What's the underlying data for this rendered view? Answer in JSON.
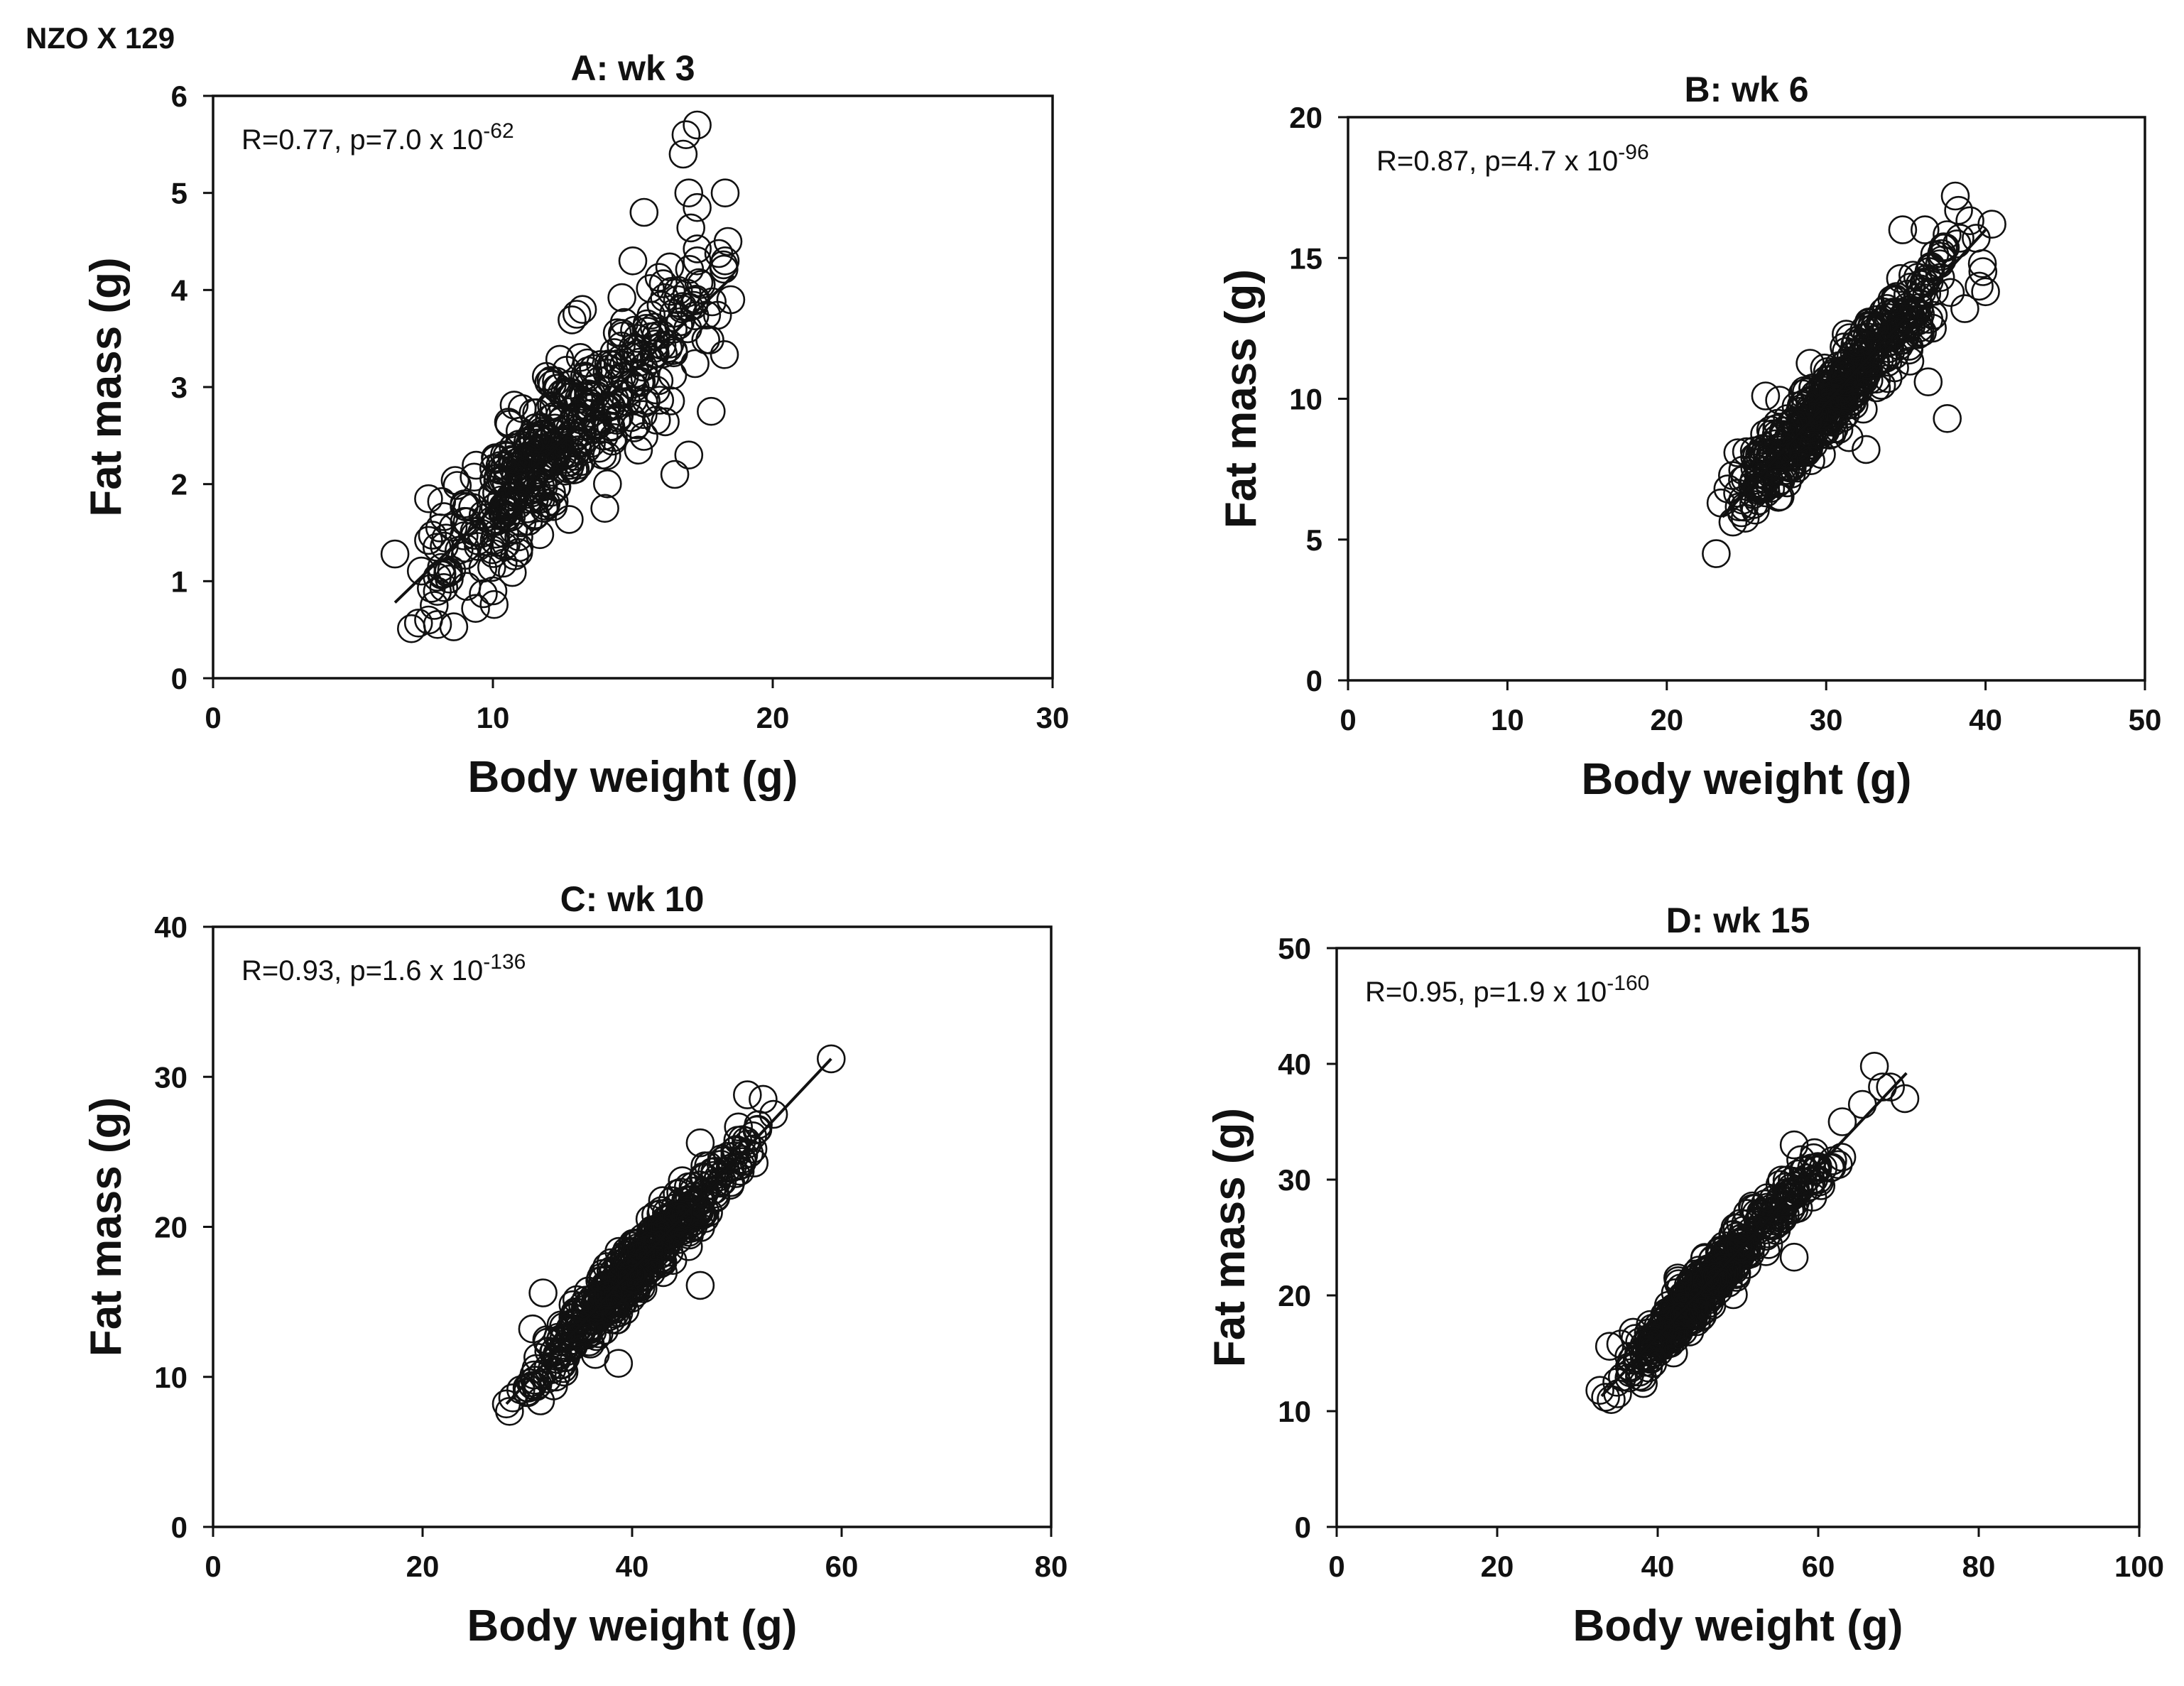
{
  "figure_label": "NZO X 129",
  "chart_data": [
    {
      "id": "A",
      "type": "scatter",
      "title": "A: wk 3",
      "xlabel": "Body weight (g)",
      "ylabel": "Fat mass (g)",
      "xlim": [
        0,
        30
      ],
      "ylim": [
        0,
        6
      ],
      "xticks": [
        0,
        10,
        20,
        30
      ],
      "yticks": [
        0,
        1,
        2,
        3,
        4,
        5,
        6
      ],
      "annotation": {
        "text": "R=0.77, p=7.0 x 10",
        "exponent": "-62"
      },
      "fit_line": {
        "x": [
          6.5,
          18.6
        ],
        "y": [
          0.78,
          4.15
        ]
      },
      "scatter_params": {
        "n": 420,
        "seed": 11,
        "xmin": 6.5,
        "xmax": 18.6,
        "xmode": 11.8,
        "noise": 0.55
      },
      "points": [
        [
          6.5,
          1.28
        ],
        [
          7.7,
          0.6
        ],
        [
          7.9,
          0.75
        ],
        [
          7.7,
          1.85
        ],
        [
          7.7,
          1.42
        ],
        [
          8.0,
          1.35
        ],
        [
          10.0,
          0.9
        ],
        [
          14.0,
          1.75
        ],
        [
          15.2,
          2.35
        ],
        [
          16.5,
          2.1
        ],
        [
          17.0,
          2.3
        ],
        [
          17.8,
          2.75
        ],
        [
          15.0,
          4.3
        ],
        [
          15.4,
          4.8
        ],
        [
          16.8,
          5.4
        ],
        [
          16.9,
          5.6
        ],
        [
          17.3,
          5.7
        ],
        [
          17.0,
          5.0
        ],
        [
          17.3,
          4.85
        ],
        [
          18.3,
          5.0
        ],
        [
          18.4,
          4.5
        ],
        [
          18.3,
          4.3
        ],
        [
          18.5,
          3.9
        ],
        [
          17.3,
          4.3
        ],
        [
          13.2,
          3.8
        ],
        [
          13.0,
          3.75
        ],
        [
          16.6,
          3.9
        ]
      ]
    },
    {
      "id": "B",
      "type": "scatter",
      "title": "B: wk 6",
      "xlabel": "Body weight (g)",
      "ylabel": "Fat mass (g)",
      "xlim": [
        0,
        50
      ],
      "ylim": [
        0,
        20
      ],
      "xticks": [
        0,
        10,
        20,
        30,
        40,
        50
      ],
      "yticks": [
        0,
        5,
        10,
        15,
        20
      ],
      "annotation": {
        "text": "R=0.87, p=4.7 x 10",
        "exponent": "-96"
      },
      "fit_line": {
        "x": [
          23.5,
          40.0
        ],
        "y": [
          5.8,
          16.0
        ]
      },
      "scatter_params": {
        "n": 460,
        "seed": 23,
        "xmin": 23.5,
        "xmax": 40.5,
        "xmode": 29.5,
        "noise": 1.0
      },
      "points": [
        [
          23.1,
          4.5
        ],
        [
          23.4,
          6.3
        ],
        [
          26.2,
          10.1
        ],
        [
          38.1,
          17.2
        ],
        [
          40.4,
          16.2
        ],
        [
          39.8,
          14.8
        ],
        [
          37.6,
          9.3
        ],
        [
          36.4,
          10.6
        ],
        [
          34.8,
          16.0
        ],
        [
          36.2,
          16.0
        ],
        [
          38.2,
          15.5
        ],
        [
          39.6,
          14.0
        ],
        [
          40.0,
          13.8
        ],
        [
          38.7,
          13.2
        ],
        [
          32.5,
          8.2
        ],
        [
          27.0,
          6.5
        ]
      ]
    },
    {
      "id": "C",
      "type": "scatter",
      "title": "C: wk 10",
      "xlabel": "Body weight (g)",
      "ylabel": "Fat mass (g)",
      "xlim": [
        0,
        80
      ],
      "ylim": [
        0,
        40
      ],
      "xticks": [
        0,
        20,
        40,
        60,
        80
      ],
      "yticks": [
        0,
        10,
        20,
        30,
        40
      ],
      "annotation": {
        "text": "R=0.93, p=1.6 x 10",
        "exponent": "-136"
      },
      "fit_line": {
        "x": [
          28.0,
          59.0
        ],
        "y": [
          8.2,
          31.2
        ]
      },
      "scatter_params": {
        "n": 470,
        "seed": 37,
        "xmin": 28.5,
        "xmax": 53.5,
        "xmode": 39.0,
        "noise": 1.4
      },
      "points": [
        [
          28.0,
          8.2
        ],
        [
          28.3,
          7.7
        ],
        [
          28.6,
          8.6
        ],
        [
          59.0,
          31.2
        ],
        [
          51.0,
          28.8
        ],
        [
          52.5,
          28.5
        ],
        [
          53.5,
          27.5
        ],
        [
          52.0,
          26.5
        ],
        [
          46.5,
          25.6
        ],
        [
          46.5,
          16.1
        ],
        [
          38.7,
          10.9
        ],
        [
          30.5,
          13.2
        ],
        [
          31.0,
          11.3
        ],
        [
          32.5,
          9.4
        ],
        [
          31.5,
          15.6
        ]
      ]
    },
    {
      "id": "D",
      "type": "scatter",
      "title": "D: wk 15",
      "xlabel": "Body weight (g)",
      "ylabel": "Fat mass (g)",
      "xlim": [
        0,
        100
      ],
      "ylim": [
        0,
        50
      ],
      "xticks": [
        0,
        20,
        40,
        60,
        80,
        100
      ],
      "yticks": [
        0,
        10,
        20,
        30,
        40,
        50
      ],
      "annotation": {
        "text": "R=0.95, p=1.9 x 10",
        "exponent": "-160"
      },
      "fit_line": {
        "x": [
          33.0,
          71.0
        ],
        "y": [
          11.3,
          39.2
        ]
      },
      "scatter_params": {
        "n": 470,
        "seed": 53,
        "xmin": 34.5,
        "xmax": 63.0,
        "xmode": 44.0,
        "noise": 1.6
      },
      "points": [
        [
          32.8,
          11.8
        ],
        [
          33.5,
          11.2
        ],
        [
          34.2,
          11.0
        ],
        [
          35.0,
          11.5
        ],
        [
          34.0,
          15.6
        ],
        [
          35.4,
          15.8
        ],
        [
          67.0,
          39.8
        ],
        [
          70.8,
          37.0
        ],
        [
          69.0,
          38.0
        ],
        [
          68.0,
          38.0
        ],
        [
          65.5,
          36.5
        ],
        [
          63.0,
          35.0
        ],
        [
          57.0,
          23.3
        ],
        [
          61.5,
          31.0
        ],
        [
          62.5,
          31.3
        ],
        [
          57.0,
          33.0
        ],
        [
          42.5,
          21.5
        ],
        [
          60.0,
          30.0
        ]
      ]
    }
  ]
}
